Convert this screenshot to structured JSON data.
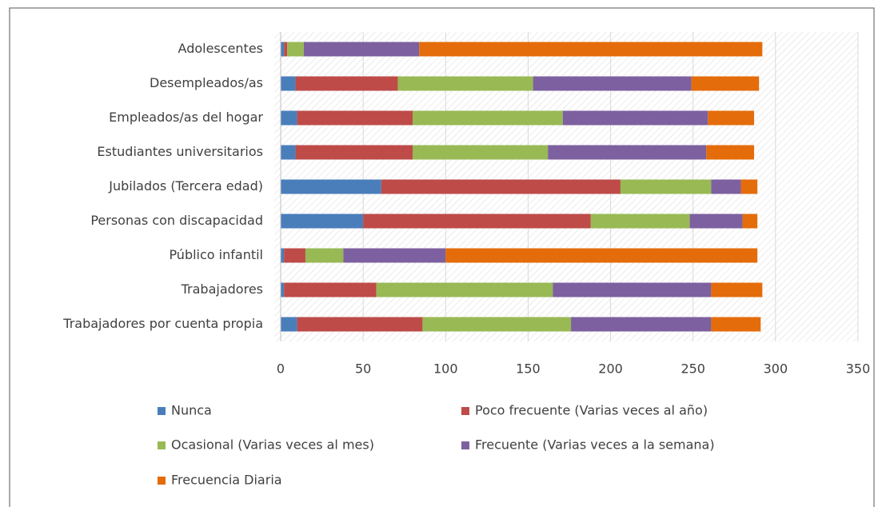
{
  "chart_data": {
    "type": "stacked_barh",
    "categories": [
      "Adolescentes",
      "Desempleados/as",
      "Empleados/as del hogar",
      "Estudiantes universitarios",
      "Jubilados (Tercera edad)",
      "Personas con discapacidad",
      "Público infantil",
      "Trabajadores",
      "Trabajadores por cuenta propia"
    ],
    "series": [
      {
        "name": "Nunca",
        "color": "#4a7ebb",
        "values": [
          2,
          9,
          10,
          9,
          61,
          50,
          2,
          2,
          10
        ]
      },
      {
        "name": "Poco frecuente (Varias veces al año)",
        "color": "#be4b48",
        "values": [
          2,
          62,
          70,
          71,
          145,
          138,
          13,
          56,
          76
        ]
      },
      {
        "name": "Ocasional (Varias veces al mes)",
        "color": "#98b954",
        "values": [
          10,
          82,
          91,
          82,
          55,
          60,
          23,
          107,
          90
        ]
      },
      {
        "name": "Frecuente (Varias veces a la semana)",
        "color": "#7d60a0",
        "values": [
          70,
          96,
          88,
          96,
          18,
          32,
          62,
          96,
          85
        ]
      },
      {
        "name": "Frecuencia Diaria",
        "color": "#e46c0a",
        "values": [
          208,
          41,
          28,
          29,
          10,
          9,
          189,
          31,
          30
        ]
      }
    ],
    "xlim": [
      0,
      350
    ],
    "xticks": [
      0,
      50,
      100,
      150,
      200,
      250,
      300,
      350
    ],
    "grid": true
  }
}
